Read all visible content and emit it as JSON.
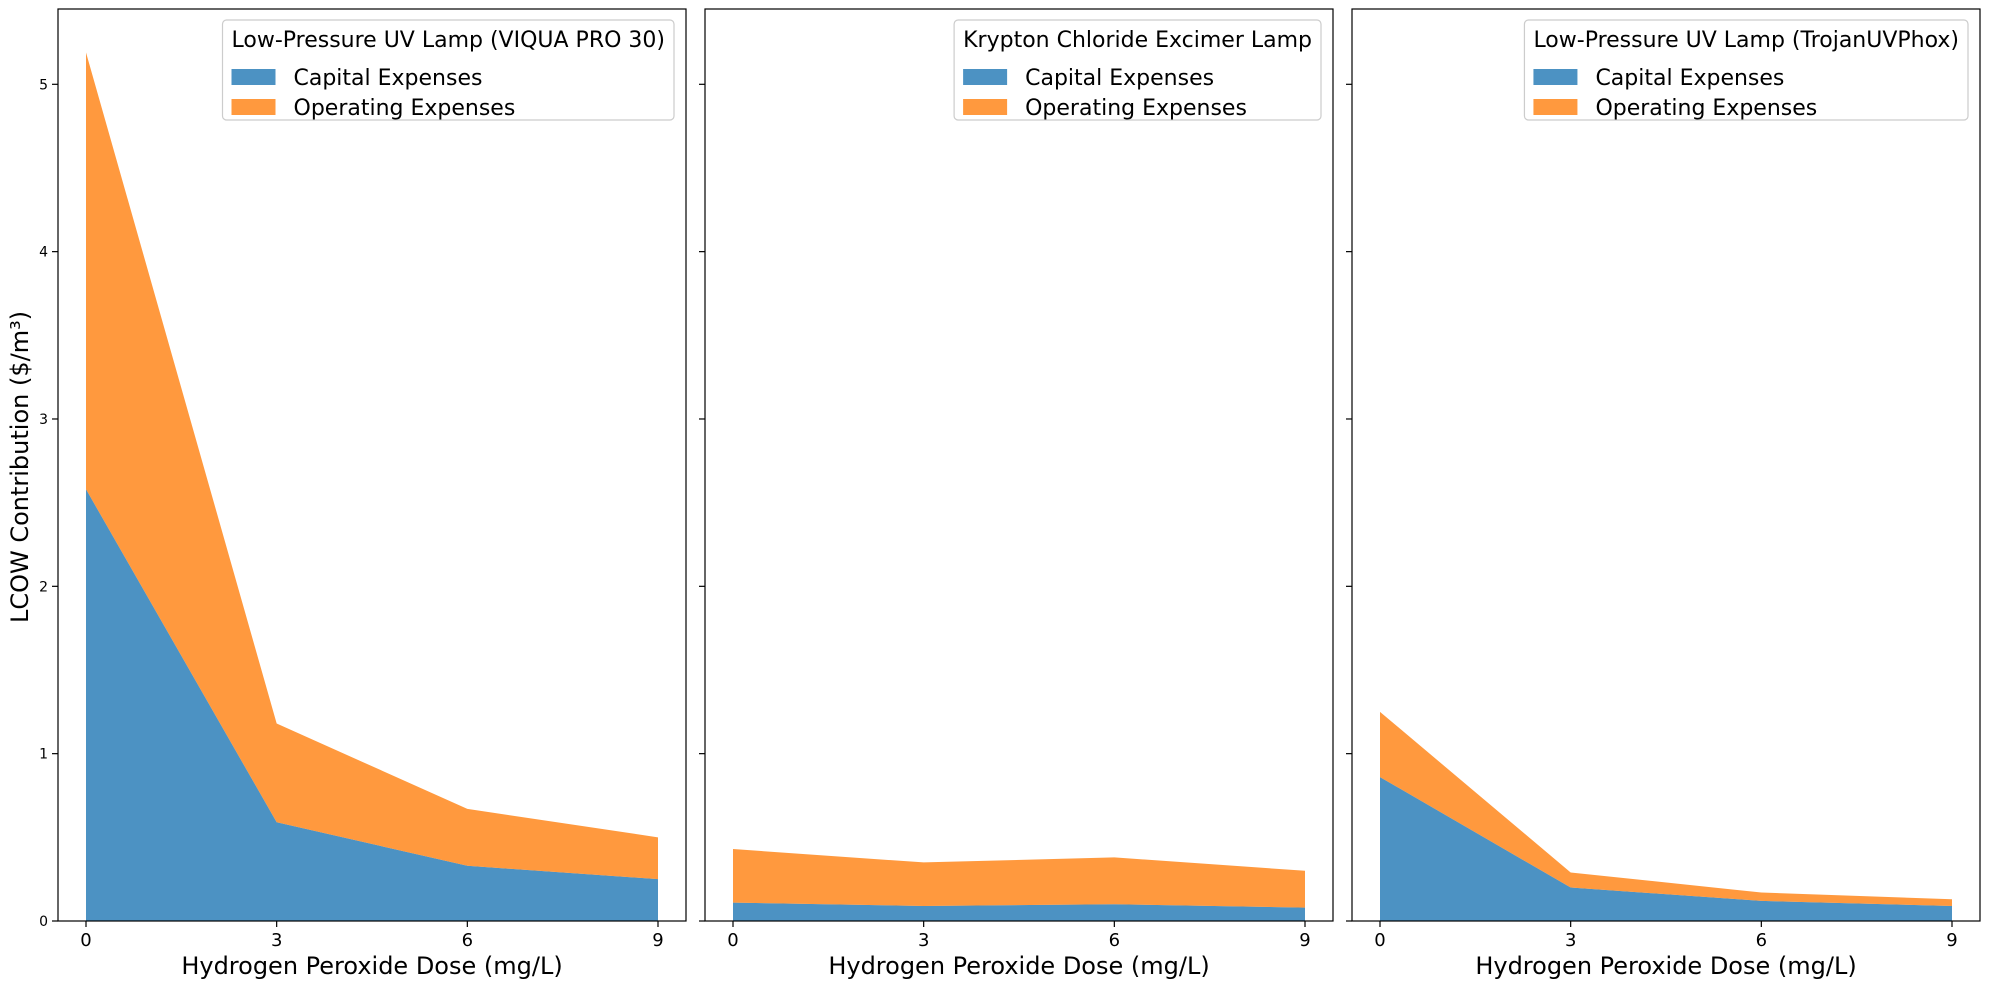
{
  "figure": {
    "ylabel": "LCOW Contribution ($/m³)"
  },
  "colors": {
    "capital": "#1f77b4",
    "operating": "#ff7f0e"
  },
  "chart_data": [
    {
      "type": "area",
      "stacked": true,
      "title": "",
      "legend_title": "Low-Pressure UV Lamp (VIQUA PRO 30)",
      "legend_position": "top-right",
      "xlabel": "Hydrogen Peroxide Dose (mg/L)",
      "ylabel": "LCOW Contribution ($/m³)",
      "x": [
        0,
        3,
        6,
        9
      ],
      "xticks": [
        "0",
        "3",
        "6",
        "9"
      ],
      "ylim": [
        0,
        5.45
      ],
      "yticks": [
        "0",
        "1",
        "2",
        "3",
        "4",
        "5"
      ],
      "grid": false,
      "series": [
        {
          "name": "Capital Expenses",
          "values": [
            2.58,
            0.59,
            0.33,
            0.25
          ]
        },
        {
          "name": "Operating Expenses",
          "values": [
            2.61,
            0.59,
            0.34,
            0.25
          ]
        }
      ]
    },
    {
      "type": "area",
      "stacked": true,
      "title": "",
      "legend_title": "Krypton Chloride Excimer Lamp",
      "legend_position": "top-right",
      "xlabel": "Hydrogen Peroxide Dose (mg/L)",
      "ylabel": "",
      "x": [
        0,
        3,
        6,
        9
      ],
      "xticks": [
        "0",
        "3",
        "6",
        "9"
      ],
      "ylim": [
        0,
        5.45
      ],
      "yticks": [
        "",
        "",
        "",
        "",
        "",
        ""
      ],
      "grid": false,
      "series": [
        {
          "name": "Capital Expenses",
          "values": [
            0.11,
            0.09,
            0.1,
            0.08
          ]
        },
        {
          "name": "Operating Expenses",
          "values": [
            0.32,
            0.26,
            0.28,
            0.22
          ]
        }
      ]
    },
    {
      "type": "area",
      "stacked": true,
      "title": "",
      "legend_title": "Low-Pressure UV Lamp (TrojanUVPhox)",
      "legend_position": "top-right",
      "xlabel": "Hydrogen Peroxide Dose (mg/L)",
      "ylabel": "",
      "x": [
        0,
        3,
        6,
        9
      ],
      "xticks": [
        "0",
        "3",
        "6",
        "9"
      ],
      "ylim": [
        0,
        5.45
      ],
      "yticks": [
        "",
        "",
        "",
        "",
        "",
        ""
      ],
      "grid": false,
      "series": [
        {
          "name": "Capital Expenses",
          "values": [
            0.86,
            0.2,
            0.12,
            0.09
          ]
        },
        {
          "name": "Operating Expenses",
          "values": [
            0.39,
            0.09,
            0.05,
            0.04
          ]
        }
      ]
    }
  ]
}
